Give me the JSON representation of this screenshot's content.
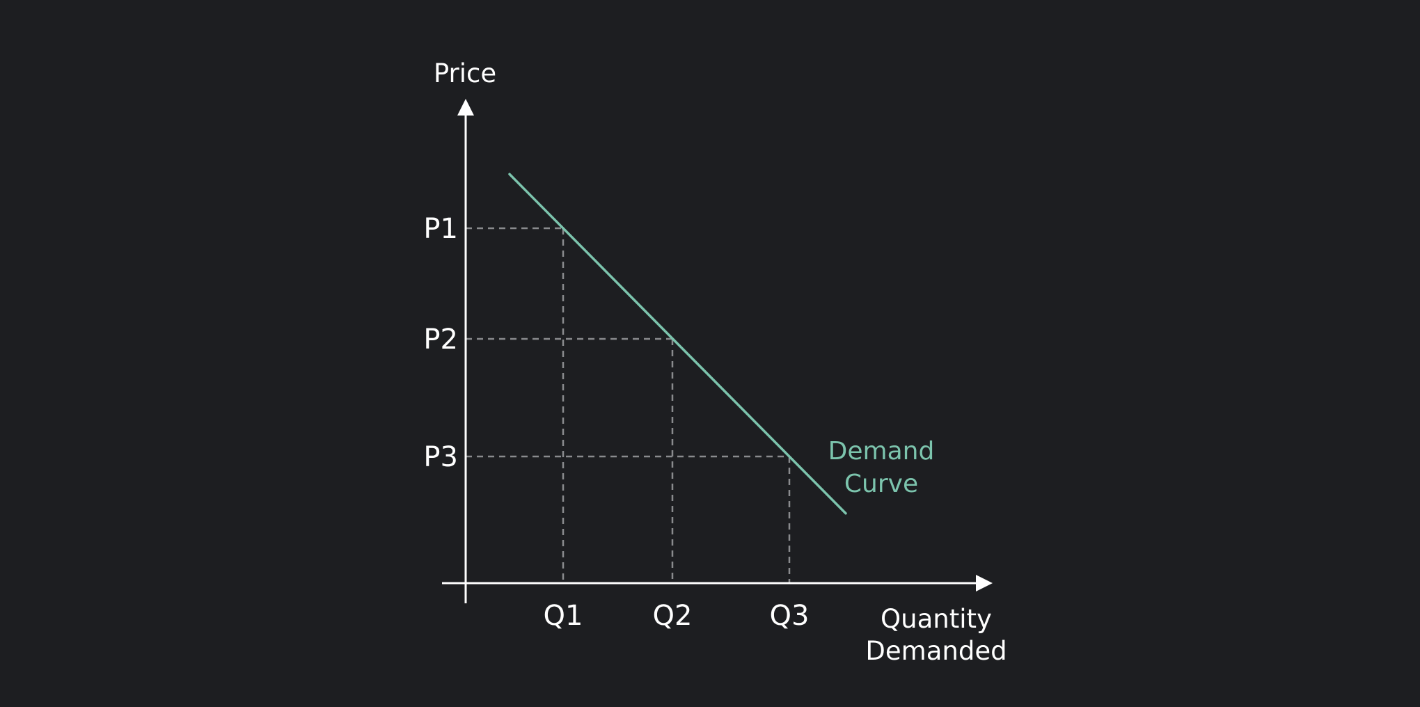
{
  "chart_data": {
    "type": "line",
    "title": "",
    "xlabel_lines": [
      "Quantity",
      "Demanded"
    ],
    "ylabel": "Price",
    "x_ticks": [
      "Q1",
      "Q2",
      "Q3"
    ],
    "y_ticks": [
      "P1",
      "P2",
      "P3"
    ],
    "series": [
      {
        "name_lines": [
          "Demand",
          "Curve"
        ],
        "color": "#7cc4ad",
        "points": [
          {
            "x": "Q1",
            "y": "P1"
          },
          {
            "x": "Q2",
            "y": "P2"
          },
          {
            "x": "Q3",
            "y": "P3"
          }
        ]
      }
    ],
    "guides": "dashed",
    "grid": false
  }
}
